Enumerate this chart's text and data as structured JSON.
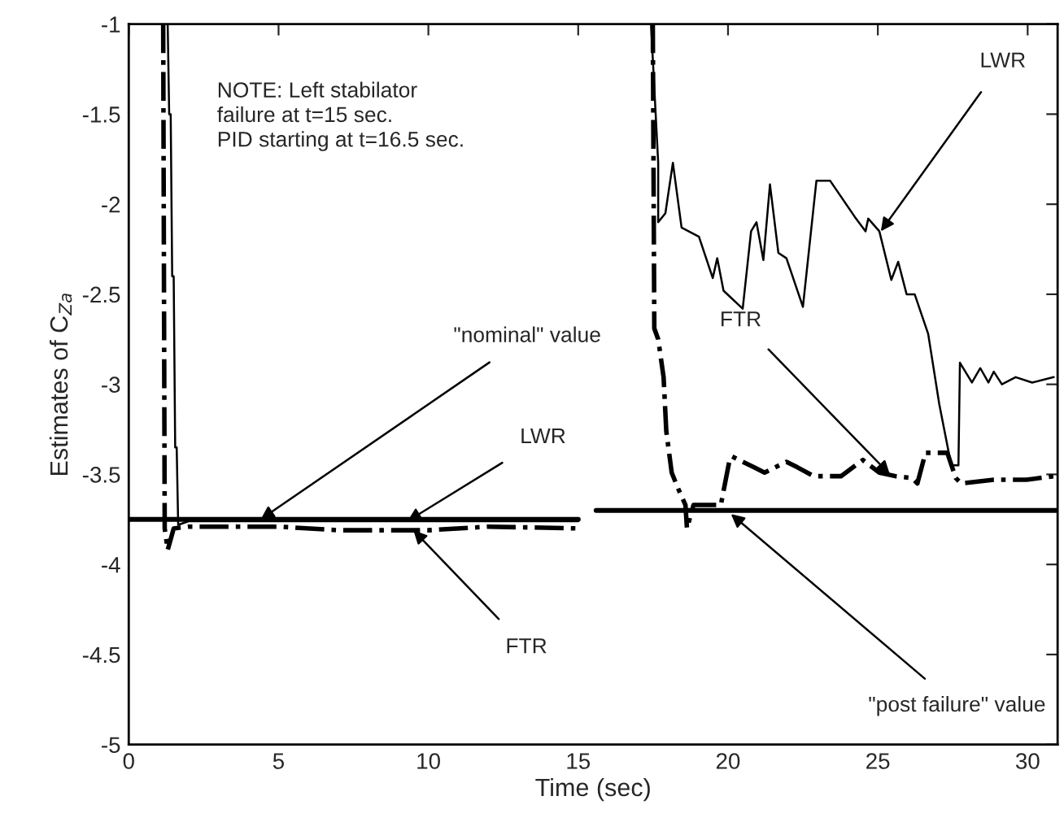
{
  "chart_data": {
    "type": "line",
    "xlabel": "Time (sec)",
    "ylabel": "Estimates of C$_{Za}$",
    "xlim": [
      0,
      31
    ],
    "ylim": [
      -5,
      -1
    ],
    "xticks": [
      0,
      5,
      10,
      15,
      20,
      25,
      30
    ],
    "yticks": [
      -5,
      -4.5,
      -4,
      -3.5,
      -3,
      -2.5,
      -2,
      -1.5,
      -1
    ],
    "grid": false,
    "legend": false,
    "series": [
      {
        "color": "#000000",
        "line_style": "solid",
        "x": [
          0,
          15
        ],
        "values": [
          -3.75,
          -3.75
        ]
      },
      {
        "color": "#000000",
        "line_style": "solid",
        "x": [
          15.6,
          31
        ],
        "values": [
          -3.7,
          -3.7
        ]
      },
      {
        "color": "#000000",
        "line_style": "solid",
        "x": [
          1.3,
          1.35,
          1.4,
          1.45,
          1.5,
          1.55,
          1.6,
          1.65,
          2,
          8,
          15,
          16,
          17.43,
          17.67,
          17.67,
          17.91,
          18.16,
          18.45,
          19.03,
          19.49,
          19.64,
          19.85,
          20.49,
          20.77,
          20.95,
          21.18,
          21.4,
          21.68,
          21.95,
          22.5,
          22.95,
          23.41,
          24.23,
          24.59,
          24.68,
          25.05,
          25.45,
          25.68,
          25.96,
          26.23,
          26.68,
          27.05,
          27.45,
          27.69,
          27.74,
          28.14,
          28.42,
          28.69,
          28.87,
          29.14,
          29.6,
          30.15,
          30.87
        ],
        "values": [
          -1,
          -1.5,
          -1.5,
          -2.4,
          -2.4,
          -3.35,
          -3.35,
          -3.78,
          -3.76,
          -3.76,
          -3.76,
          null,
          -1,
          -1.77,
          -2.1,
          -2.05,
          -1.77,
          -2.13,
          -2.18,
          -2.41,
          -2.3,
          -2.48,
          -2.58,
          -2.15,
          -2.1,
          -2.31,
          -1.89,
          -2.27,
          -2.3,
          -2.57,
          -1.87,
          -1.87,
          -2.07,
          -2.15,
          -2.08,
          -2.15,
          -2.42,
          -2.32,
          -2.5,
          -2.5,
          -2.72,
          -3.11,
          -3.45,
          -3.45,
          -2.88,
          -2.99,
          -2.91,
          -2.99,
          -2.93,
          -3,
          -2.96,
          -2.99,
          -2.96
        ]
      },
      {
        "color": "#000000",
        "line_style": "dashdot",
        "x": [
          1.15,
          1.2,
          1.3,
          1.5,
          2,
          5,
          7,
          10,
          12,
          15,
          16,
          17.49,
          17.54,
          17.67,
          17.85,
          17.94,
          18.12,
          18.34,
          18.58,
          18.63,
          18.85,
          19.76,
          20.04,
          20.13,
          20.86,
          21.22,
          21.95,
          22.31,
          22.86,
          23.77,
          24.5,
          25.05,
          25.59,
          26.14,
          26.32,
          26.59,
          27.32,
          27.6,
          27.78,
          28.87,
          29.96,
          30.87
        ],
        "values": [
          -1,
          -3.8,
          -3.92,
          -3.8,
          -3.79,
          -3.79,
          -3.81,
          -3.81,
          -3.79,
          -3.8,
          null,
          -1,
          -2.69,
          -2.75,
          -2.96,
          -3.26,
          -3.49,
          -3.58,
          -3.67,
          -3.8,
          -3.67,
          -3.67,
          -3.43,
          -3.4,
          -3.46,
          -3.49,
          -3.43,
          -3.46,
          -3.51,
          -3.51,
          -3.42,
          -3.49,
          -3.51,
          -3.52,
          -3.55,
          -3.38,
          -3.38,
          -3.52,
          -3.55,
          -3.53,
          -3.53,
          -3.51
        ]
      }
    ],
    "annotations": [
      "NOTE: Left stabilator\nfailure at t=15 sec.\nPID starting at t=16.5 sec.",
      {
        "text": "\"nominal\" value",
        "x": 4.4,
        "y": -3.75
      },
      {
        "text": "LWR",
        "x": 9.3,
        "y": -3.76
      },
      {
        "text": "FTR",
        "x": 9.5,
        "y": -3.81
      },
      {
        "text": "LWR",
        "x": 25.1,
        "y": -2.15
      },
      {
        "text": "FTR",
        "x": 25.4,
        "y": -3.5
      },
      {
        "text": "\"post failure\" value",
        "x": 20.1,
        "y": -3.72
      }
    ]
  }
}
